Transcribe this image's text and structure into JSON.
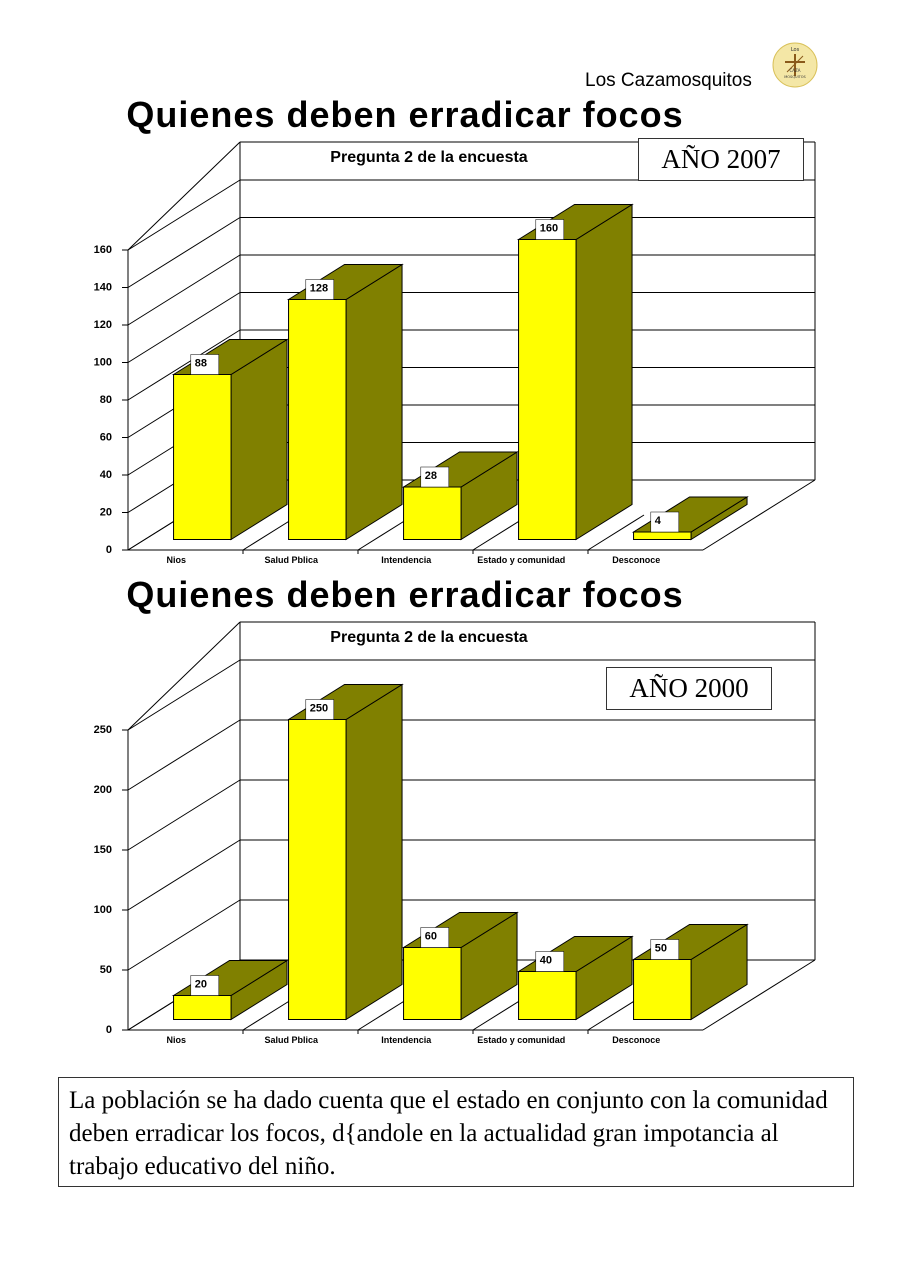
{
  "header": {
    "brand": "Los Cazamosquitos",
    "logo_text": [
      "Los",
      "CAZA",
      "MOSQUITOS"
    ]
  },
  "chart_data": [
    {
      "type": "bar",
      "title": "Quienes deben erradicar focos",
      "subtitle": "Pregunta 2 de la encuesta",
      "year_label": "AÑO 2007",
      "categories": [
        "Nios",
        "Salud Pblica",
        "Intendencia",
        "Estado y comunidad",
        "Desconoce"
      ],
      "values": [
        88,
        128,
        28,
        160,
        4
      ],
      "value_labels": [
        "88",
        "128",
        "28",
        "160",
        "4"
      ],
      "ylim": [
        0,
        160
      ],
      "yticks": [
        0,
        20,
        40,
        60,
        80,
        100,
        120,
        140,
        160
      ],
      "xlabel": "",
      "ylabel": "",
      "colors": {
        "front": "#ffff00",
        "side": "#808000"
      }
    },
    {
      "type": "bar",
      "title": "Quienes deben erradicar focos",
      "subtitle": "Pregunta 2 de la encuesta",
      "year_label": "AÑO 2000",
      "categories": [
        "Nios",
        "Salud Pblica",
        "Intendencia",
        "Estado y comunidad",
        "Desconoce"
      ],
      "values": [
        20,
        250,
        60,
        40,
        50
      ],
      "value_labels": [
        "20",
        "250",
        "60",
        "40",
        "50"
      ],
      "ylim": [
        0,
        250
      ],
      "yticks": [
        0,
        50,
        100,
        150,
        200,
        250
      ],
      "xlabel": "",
      "ylabel": "",
      "colors": {
        "front": "#ffff00",
        "side": "#808000"
      }
    }
  ],
  "caption": "La población se ha dado cuenta que el estado en conjunto con la comunidad deben erradicar los focos, d{andole en la actualidad gran impotancia al trabajo educativo del niño."
}
